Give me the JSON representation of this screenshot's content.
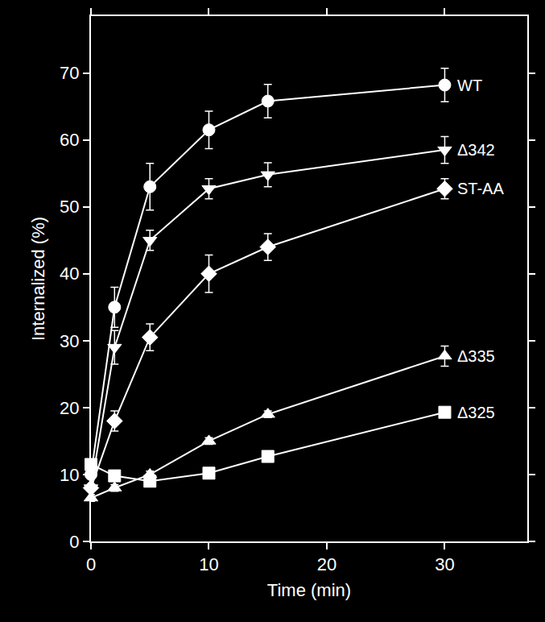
{
  "chart_data": {
    "type": "line",
    "x_label": "Time (min)",
    "y_label": "Internalized (%)",
    "x": [
      0,
      2,
      5,
      10,
      15,
      30
    ],
    "xlim": [
      0,
      37
    ],
    "xticks": [
      0,
      10,
      20,
      30
    ],
    "ylim": [
      0,
      78.5
    ],
    "yticks": [
      0,
      10,
      20,
      30,
      40,
      50,
      60,
      70
    ],
    "grid": false,
    "series": [
      {
        "name": "WT",
        "color": "#ffffff",
        "marker": "circle",
        "line_style": "solid",
        "values": [
          10,
          35,
          53,
          61.5,
          65.8,
          68.2
        ],
        "errors": [
          0,
          3,
          3.5,
          2.8,
          2.5,
          2.5
        ]
      },
      {
        "name": "Δ342",
        "color": "#ffffff",
        "marker": "triangle-down",
        "line_style": "solid",
        "values": [
          8,
          29,
          45,
          52.7,
          54.8,
          58.5
        ],
        "errors": [
          0,
          2.5,
          1.5,
          1.5,
          1.8,
          2
        ]
      },
      {
        "name": "ST-AA",
        "color": "#ffffff",
        "marker": "diamond",
        "line_style": "solid",
        "values": [
          8,
          18,
          30.5,
          40,
          44,
          52.7
        ],
        "errors": [
          0,
          1.5,
          2,
          2.8,
          2,
          1.5
        ]
      },
      {
        "name": "Δ335",
        "color": "#ffffff",
        "marker": "triangle-up",
        "line_style": "solid",
        "values": [
          6.5,
          8,
          10,
          15,
          19,
          27.7
        ],
        "errors": [
          0.5,
          0.5,
          0.5,
          0.5,
          0.5,
          1.5
        ]
      },
      {
        "name": "Δ325",
        "color": "#ffffff",
        "marker": "square",
        "line_style": "solid",
        "values": [
          11.5,
          9.8,
          9,
          10.2,
          12.7,
          19.3
        ],
        "errors": [
          0.5,
          0.5,
          0.5,
          0.5,
          0.5,
          0.5
        ]
      }
    ]
  }
}
